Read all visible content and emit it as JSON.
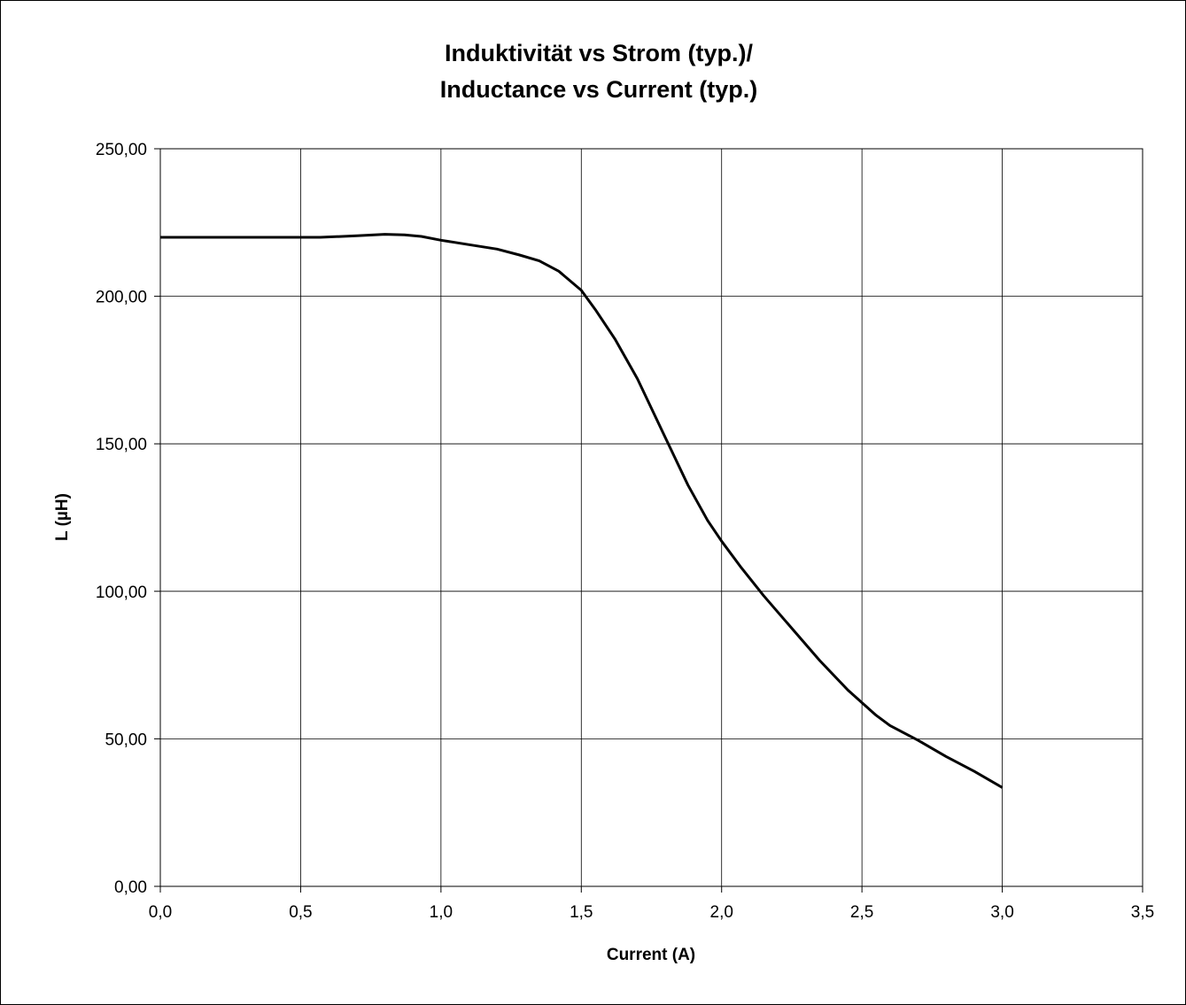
{
  "chart_data": {
    "type": "line",
    "title_lines": [
      "Induktivität vs Strom (typ.)/",
      "Inductance vs Current (typ.)"
    ],
    "xlabel": "Current (A)",
    "ylabel": "L (µH)",
    "xlim": [
      0,
      3.5
    ],
    "ylim": [
      0,
      250
    ],
    "x_ticks": [
      0,
      0.5,
      1.0,
      1.5,
      2.0,
      2.5,
      3.0,
      3.5
    ],
    "x_tick_labels": [
      "0,0",
      "0,5",
      "1,0",
      "1,5",
      "2,0",
      "2,5",
      "3,0",
      "3,5"
    ],
    "y_ticks": [
      0,
      50,
      100,
      150,
      200,
      250
    ],
    "y_tick_labels": [
      "0,00",
      "50,00",
      "100,00",
      "150,00",
      "200,00",
      "250,00"
    ],
    "grid": true,
    "legend": "none",
    "line_color": "#000000",
    "series": [
      {
        "x": [
          0,
          0.1,
          0.2,
          0.3,
          0.4,
          0.5,
          0.57,
          0.7,
          0.8,
          0.87,
          0.93,
          1.0,
          1.1,
          1.2,
          1.28,
          1.35,
          1.42,
          1.5,
          1.55,
          1.62,
          1.7,
          1.8,
          1.88,
          1.95,
          2.0,
          2.07,
          2.15,
          2.25,
          2.35,
          2.45,
          2.55,
          2.6,
          2.7,
          2.8,
          2.9,
          3.0
        ],
        "y": [
          220,
          220,
          220,
          220,
          220,
          220,
          220,
          220.5,
          221,
          220.8,
          220.3,
          219,
          217.5,
          216,
          214,
          212,
          208.5,
          202,
          195.5,
          185.5,
          172,
          152,
          136,
          124,
          117,
          108,
          98.5,
          87.5,
          76.5,
          66.5,
          58,
          54.5,
          49.5,
          44,
          39,
          33.5
        ]
      }
    ]
  }
}
